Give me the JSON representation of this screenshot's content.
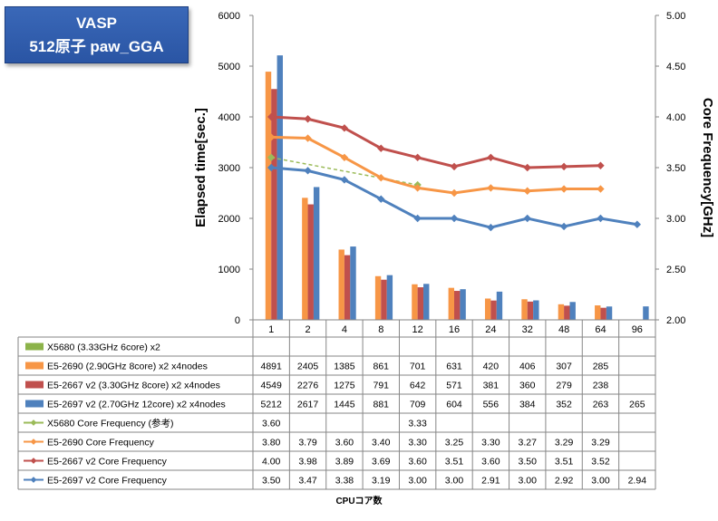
{
  "title": {
    "line1": "VASP",
    "line2": "512原子 paw_GGA"
  },
  "chart_data": {
    "type": "bar+line",
    "categories": [
      "1",
      "2",
      "4",
      "8",
      "12",
      "16",
      "24",
      "32",
      "48",
      "64",
      "96"
    ],
    "xlabel": "CPUコア数",
    "ylabel_left": "Elapsed time[sec.]",
    "ylabel_right": "Core Frequency[GHz]",
    "ylim_left": [
      0,
      6000
    ],
    "yticks_left": [
      "0",
      "1000",
      "2000",
      "3000",
      "4000",
      "5000",
      "6000"
    ],
    "ylim_right": [
      2.0,
      5.0
    ],
    "yticks_right": [
      "2.00",
      "2.50",
      "3.00",
      "3.50",
      "4.00",
      "4.50",
      "5.00"
    ],
    "bar_series": [
      {
        "name": "X5680 (3.33GHz 6core) x2",
        "color": "#8cb34a",
        "values": [
          null,
          null,
          null,
          null,
          null,
          null,
          null,
          null,
          null,
          null,
          null
        ]
      },
      {
        "name": "E5-2690 (2.90GHz 8core) x2 x4nodes",
        "color": "#f79646",
        "values": [
          4891,
          2405,
          1385,
          861,
          701,
          631,
          420,
          406,
          307,
          285,
          null
        ]
      },
      {
        "name": "E5-2667 v2 (3.30GHz 8core) x2 x4nodes",
        "color": "#c0504d",
        "values": [
          4549,
          2276,
          1275,
          791,
          642,
          571,
          381,
          360,
          279,
          238,
          null
        ]
      },
      {
        "name": "E5-2697 v2 (2.70GHz 12core) x2 x4nodes",
        "color": "#4f81bd",
        "values": [
          5212,
          2617,
          1445,
          881,
          709,
          604,
          556,
          384,
          352,
          263,
          265
        ]
      }
    ],
    "line_series": [
      {
        "name": "X5680 Core Frequency (参考)",
        "color": "#9bbb59",
        "dashed": true,
        "values": [
          3.6,
          null,
          null,
          null,
          3.33,
          null,
          null,
          null,
          null,
          null,
          null
        ],
        "labels": [
          "3.60",
          "",
          "",
          "",
          "3.33",
          "",
          "",
          "",
          "",
          "",
          ""
        ]
      },
      {
        "name": "E5-2690 Core Frequency",
        "color": "#f79646",
        "dashed": false,
        "values": [
          3.8,
          3.79,
          3.6,
          3.4,
          3.3,
          3.25,
          3.3,
          3.27,
          3.29,
          3.29,
          null
        ],
        "labels": [
          "3.80",
          "3.79",
          "3.60",
          "3.40",
          "3.30",
          "3.25",
          "3.30",
          "3.27",
          "3.29",
          "3.29",
          ""
        ]
      },
      {
        "name": "E5-2667 v2 Core Frequency",
        "color": "#c0504d",
        "dashed": false,
        "values": [
          4.0,
          3.98,
          3.89,
          3.69,
          3.6,
          3.51,
          3.6,
          3.5,
          3.51,
          3.52,
          null
        ],
        "labels": [
          "4.00",
          "3.98",
          "3.89",
          "3.69",
          "3.60",
          "3.51",
          "3.60",
          "3.50",
          "3.51",
          "3.52",
          ""
        ]
      },
      {
        "name": "E5-2697 v2 Core Frequency",
        "color": "#4f81bd",
        "dashed": false,
        "values": [
          3.5,
          3.47,
          3.38,
          3.19,
          3.0,
          3.0,
          2.91,
          3.0,
          2.92,
          3.0,
          2.94
        ],
        "labels": [
          "3.50",
          "3.47",
          "3.38",
          "3.19",
          "3.00",
          "3.00",
          "2.91",
          "3.00",
          "2.92",
          "3.00",
          "2.94"
        ]
      }
    ]
  }
}
